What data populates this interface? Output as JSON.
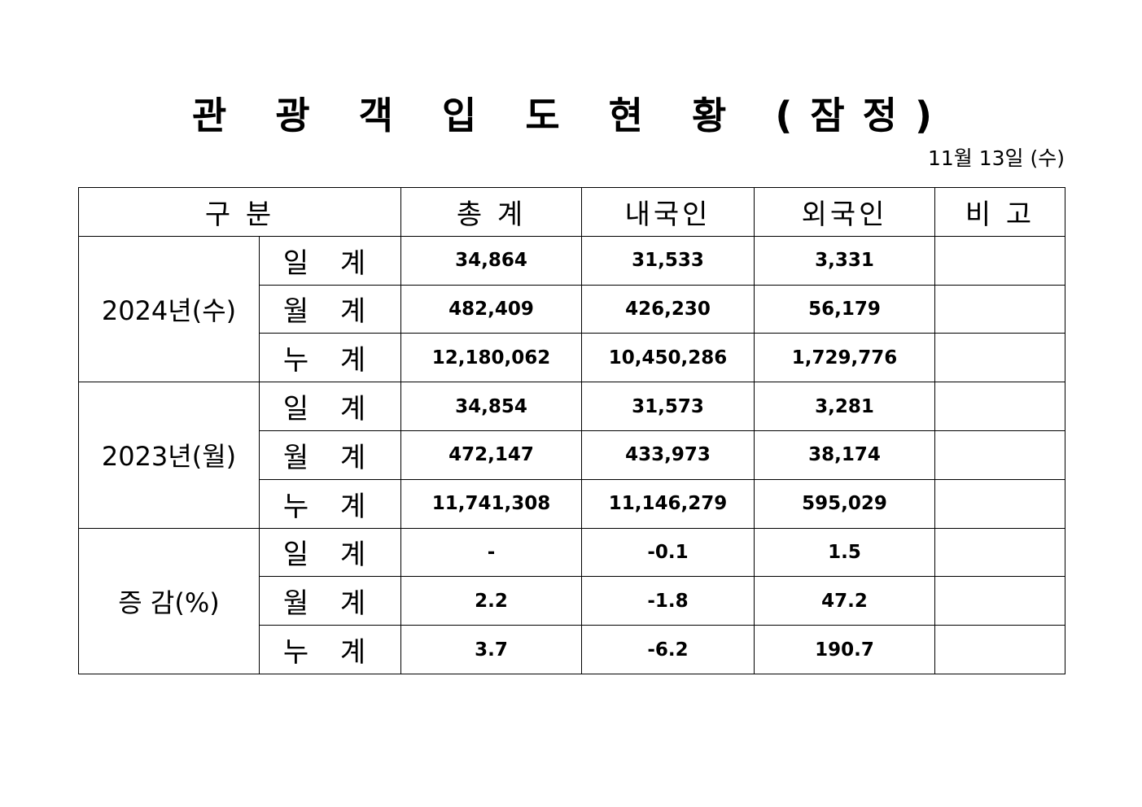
{
  "title": "관 광 객 입 도 현 황 (잠정)",
  "date": "11월 13일 (수)",
  "headers": {
    "category": "구   분",
    "total": "총   계",
    "domestic": "내국인",
    "foreign": "외국인",
    "remarks": "비   고"
  },
  "groups": [
    {
      "label": "2024년(수)",
      "rows": [
        {
          "label": "일 계",
          "total": "34,864",
          "domestic": "31,533",
          "foreign": "3,331",
          "remarks": ""
        },
        {
          "label": "월 계",
          "total": "482,409",
          "domestic": "426,230",
          "foreign": "56,179",
          "remarks": ""
        },
        {
          "label": "누 계",
          "total": "12,180,062",
          "domestic": "10,450,286",
          "foreign": "1,729,776",
          "remarks": ""
        }
      ]
    },
    {
      "label": "2023년(월)",
      "rows": [
        {
          "label": "일 계",
          "total": "34,854",
          "domestic": "31,573",
          "foreign": "3,281",
          "remarks": ""
        },
        {
          "label": "월 계",
          "total": "472,147",
          "domestic": "433,973",
          "foreign": "38,174",
          "remarks": ""
        },
        {
          "label": "누 계",
          "total": "11,741,308",
          "domestic": "11,146,279",
          "foreign": "595,029",
          "remarks": ""
        }
      ]
    },
    {
      "label": "증 감(%)",
      "rows": [
        {
          "label": "일 계",
          "total": "-",
          "domestic": "-0.1",
          "foreign": "1.5",
          "remarks": ""
        },
        {
          "label": "월 계",
          "total": "2.2",
          "domestic": "-1.8",
          "foreign": "47.2",
          "remarks": ""
        },
        {
          "label": "누 계",
          "total": "3.7",
          "domestic": "-6.2",
          "foreign": "190.7",
          "remarks": ""
        }
      ]
    }
  ]
}
